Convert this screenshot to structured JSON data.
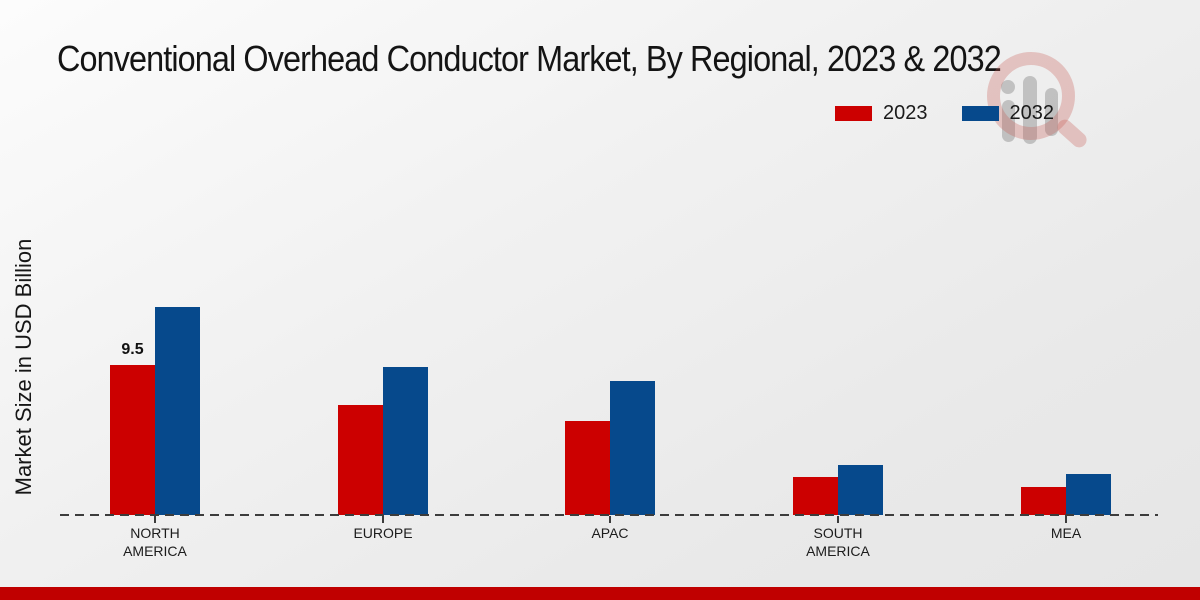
{
  "page": {
    "background_top_color": "#fcfcfc",
    "background_bottom_color": "#e6e6e6",
    "footer_strip_color": "#c00000"
  },
  "chart_data": {
    "type": "bar",
    "title": "Conventional Overhead Conductor Market, By Regional, 2023 & 2032",
    "ylabel": "Market Size in USD Billion",
    "xlabel": "",
    "categories": [
      "NORTH AMERICA",
      "EUROPE",
      "APAC",
      "SOUTH AMERICA",
      "MEA"
    ],
    "series": [
      {
        "name": "2023",
        "color": "#cc0000",
        "values": [
          9.5,
          7.0,
          6.0,
          2.4,
          1.8
        ]
      },
      {
        "name": "2032",
        "color": "#06498c",
        "values": [
          13.2,
          9.4,
          8.5,
          3.2,
          2.6
        ]
      }
    ],
    "data_labels": [
      {
        "series": "2023",
        "category": "NORTH AMERICA",
        "text": "9.5"
      }
    ],
    "legend_position": "top-right",
    "grid": false,
    "baseline_style": "dashed",
    "ylim": [
      0,
      14
    ]
  }
}
